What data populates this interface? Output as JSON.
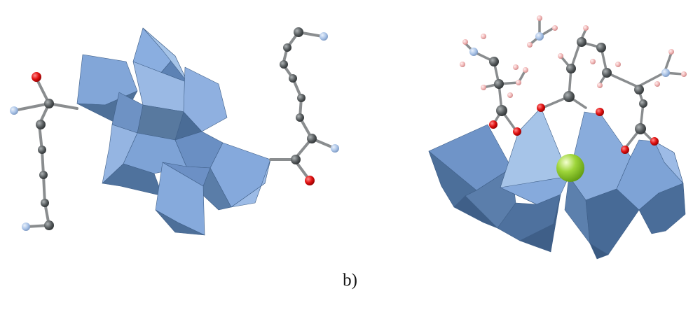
{
  "caption": "b)",
  "colors": {
    "octahedron_light": "#a6c4e8",
    "octahedron_mid": "#7ea3d6",
    "octahedron_dark": "#48698f",
    "carbon": "#555a5c",
    "bond": "#8a8d8f",
    "oxygen": "#e01010",
    "nitrogen": "#a8c2e6",
    "hydrogen": "#f0b4b4",
    "metal": "#9ed53a"
  }
}
